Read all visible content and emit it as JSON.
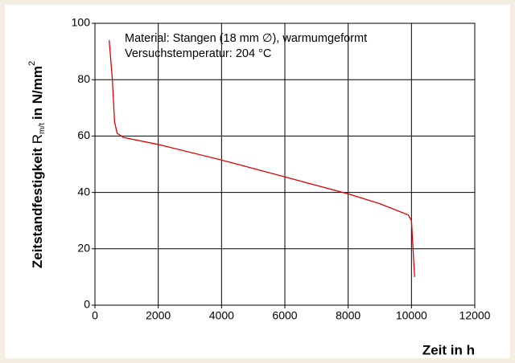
{
  "chart_data": {
    "type": "line",
    "ylabel": {
      "text": "Zeitstandfestigkeit ",
      "symbol": "R",
      "subscript": "m/t",
      "unit": "in N/mm",
      "superscript": "2"
    },
    "xlabel": "Zeit in h",
    "annotations": [
      "Material: Stangen (18 mm ∅), warmumgeformt",
      "Versuchstemperatur: 204 °C"
    ],
    "x": [
      450,
      550,
      620,
      700,
      900,
      2000,
      4000,
      6000,
      8000,
      9000,
      9900,
      10000,
      10050,
      10100
    ],
    "values": [
      94,
      80,
      65,
      61,
      59.5,
      57,
      51.5,
      45.5,
      39.5,
      36,
      32,
      30,
      20,
      10
    ],
    "color": "#e00000",
    "xlim": [
      0,
      12000
    ],
    "xticks": [
      0,
      2000,
      4000,
      6000,
      8000,
      10000,
      12000
    ],
    "ylim": [
      0,
      100
    ],
    "yticks": [
      0,
      20,
      40,
      60,
      80,
      100
    ],
    "grid": true
  }
}
